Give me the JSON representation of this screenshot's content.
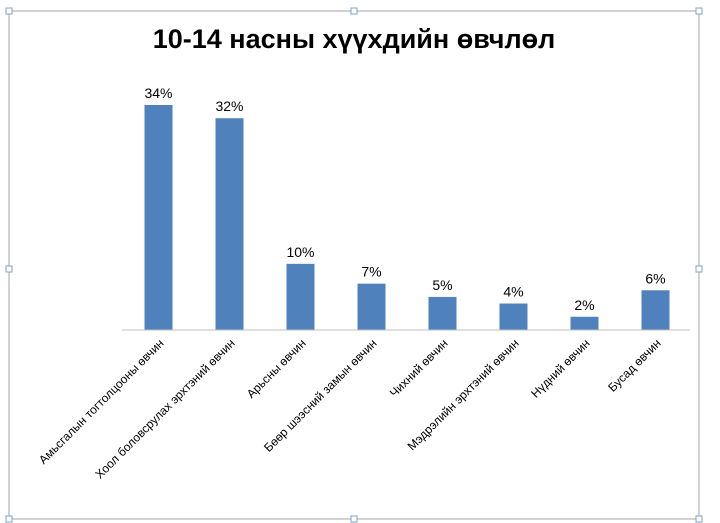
{
  "chart_data": {
    "type": "bar",
    "title": "10-14 насны хүүхдийн өвчлөл",
    "categories": [
      "Амьсгалын тогтолцооны өвчин",
      "Хоол боловсрулах эрхтэний өвчин",
      "Арьсны өвчин",
      "Бөөр шээсний замын өвчин",
      "Чихний өвчин",
      "Мэдрэлийн эрхтэний  өвчин",
      "Нүдний өвчин",
      "Бусад өвчин"
    ],
    "values": [
      34,
      32,
      10,
      7,
      5,
      4,
      2,
      6
    ],
    "data_labels": [
      "34%",
      "32%",
      "10%",
      "7%",
      "5%",
      "4%",
      "2%",
      "6%"
    ],
    "ylim": [
      0,
      34
    ],
    "grid": false,
    "legend": "none",
    "colors": {
      "bar": "#4f81bd",
      "axis": "#bfbfbf",
      "frame": "#a6a6a6",
      "handle": "#7f9fc9",
      "text": "#000000"
    }
  }
}
